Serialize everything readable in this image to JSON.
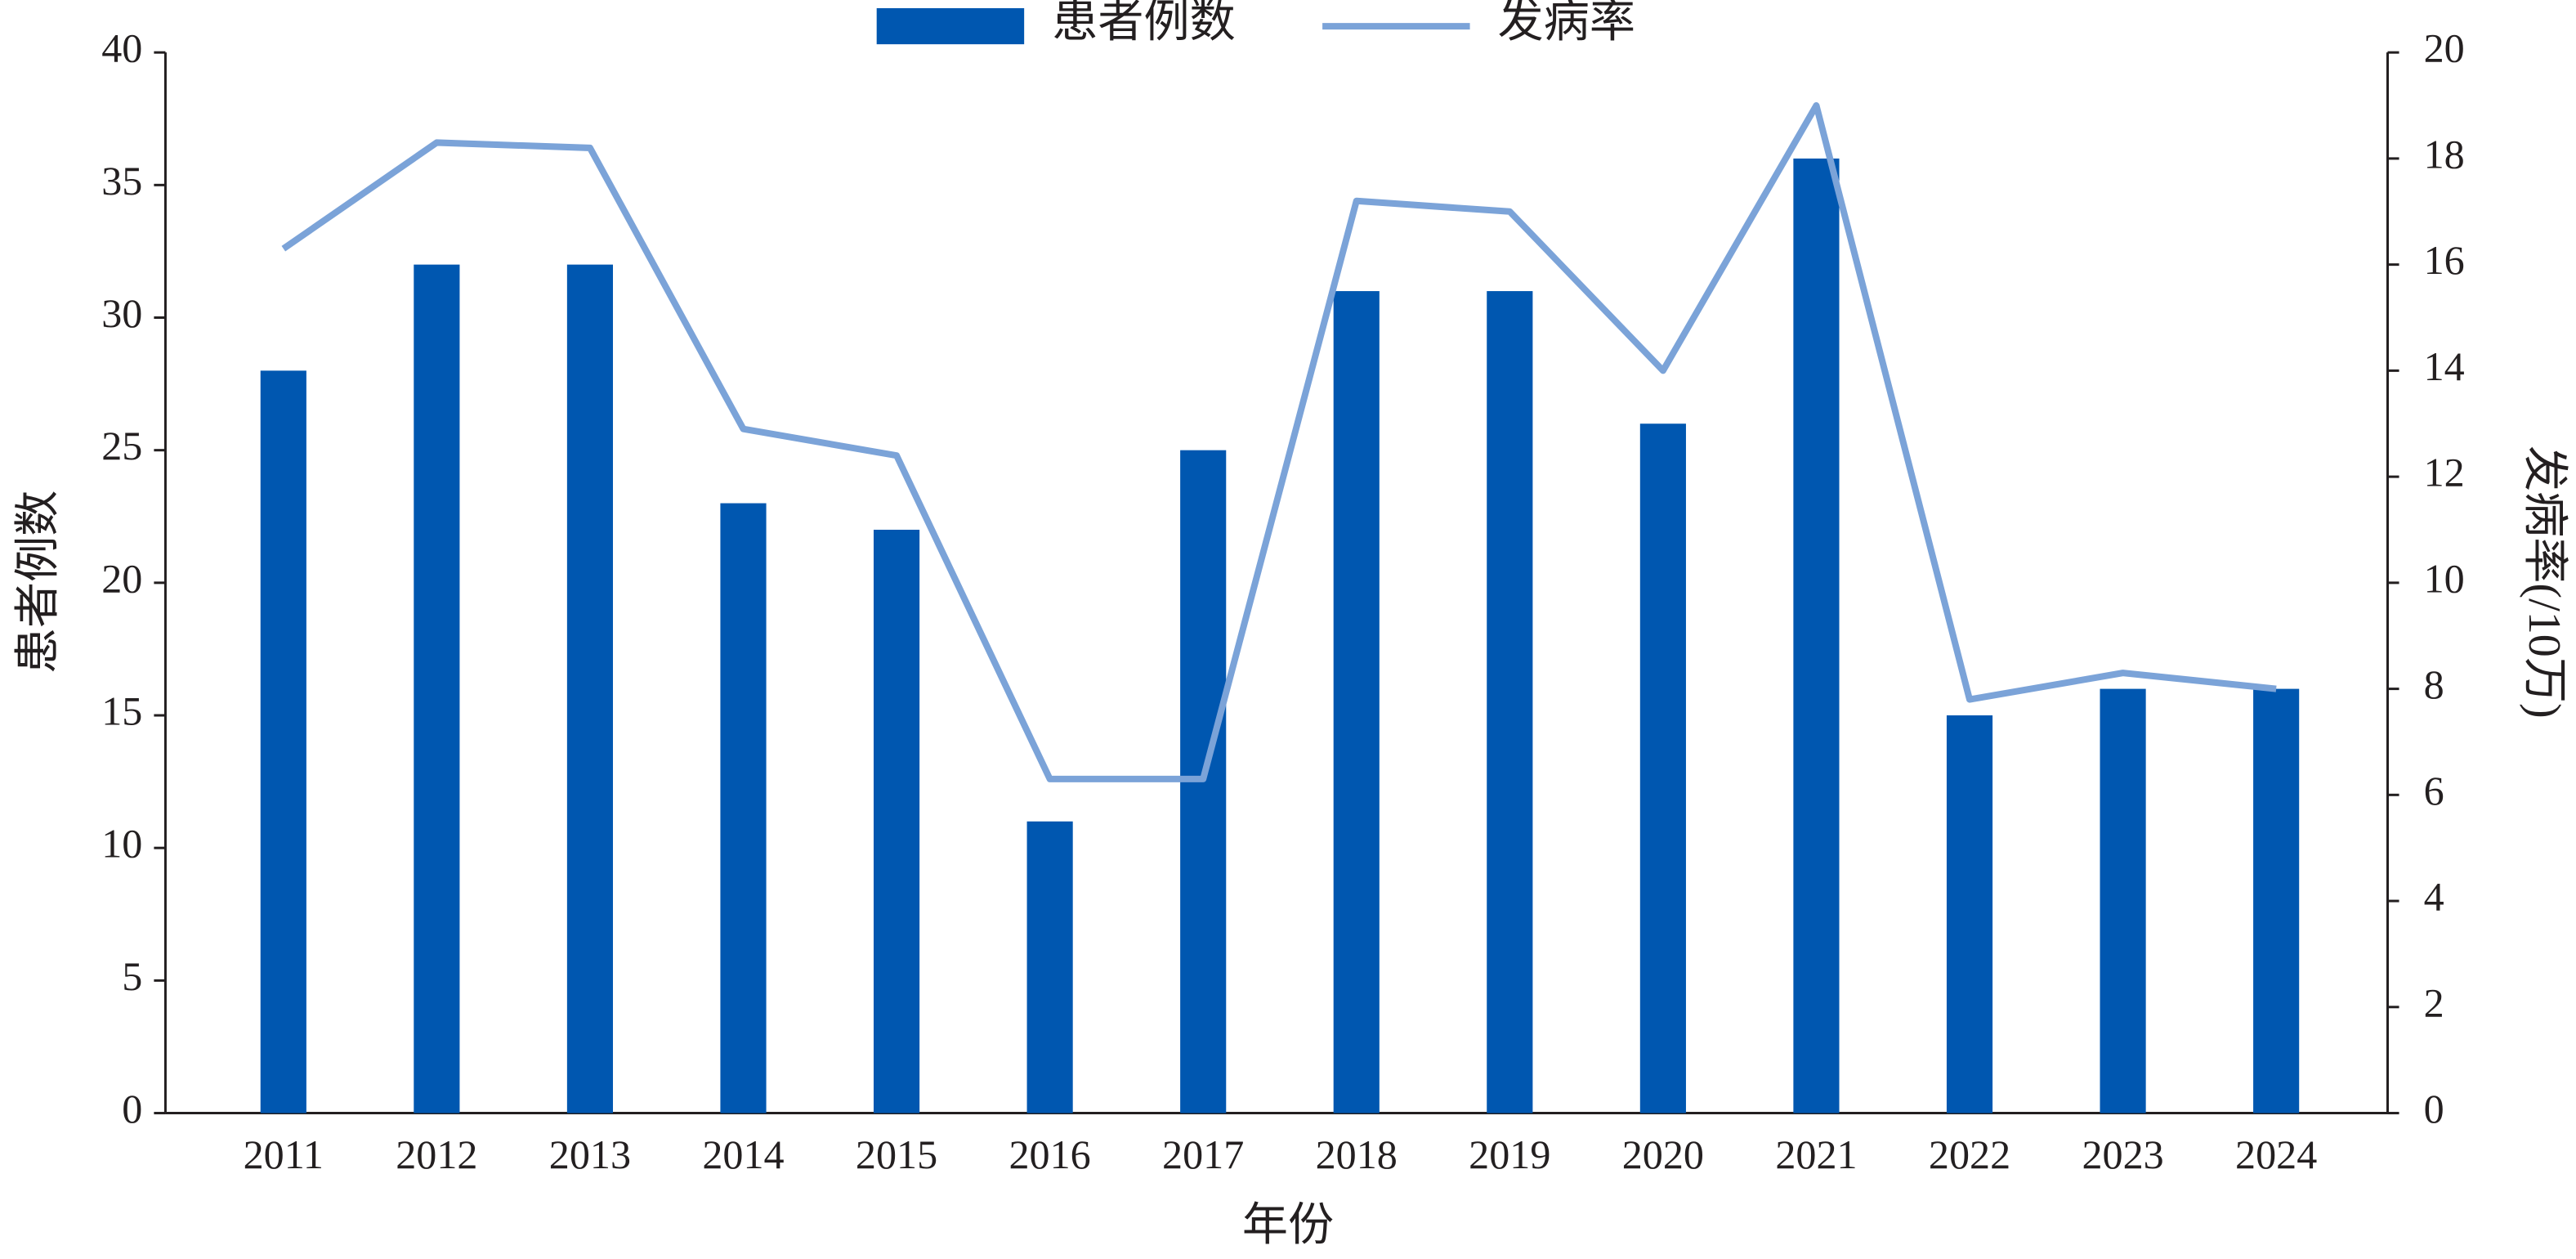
{
  "chart_data": {
    "type": "bar",
    "x_label": "年份",
    "y_label": "患者例数",
    "y2_label": "发病率(/10万)",
    "categories": [
      "2011",
      "2012",
      "2013",
      "2014",
      "2015",
      "2016",
      "2017",
      "2018",
      "2019",
      "2020",
      "2021",
      "2022",
      "2023",
      "2024"
    ],
    "series": [
      {
        "name": "患者例数",
        "type": "bar",
        "color": "#0057b0",
        "values": [
          28,
          32,
          32,
          23,
          22,
          11,
          25,
          31,
          31,
          26,
          36,
          15,
          16,
          16
        ]
      },
      {
        "name": "发病率",
        "type": "line",
        "axis": "y2",
        "color": "#7ba3d8",
        "values": [
          16.3,
          18.3,
          18.2,
          12.9,
          12.4,
          6.3,
          6.3,
          17.2,
          17.0,
          14.0,
          19.0,
          7.8,
          8.3,
          8.0
        ]
      }
    ],
    "ylim": [
      0,
      40
    ],
    "yticks": [
      0,
      5,
      10,
      15,
      20,
      25,
      30,
      35,
      40
    ],
    "y2lim": [
      0,
      20
    ],
    "y2ticks": [
      0,
      2,
      4,
      6,
      8,
      10,
      12,
      14,
      16,
      18,
      20
    ],
    "legend": "top"
  }
}
